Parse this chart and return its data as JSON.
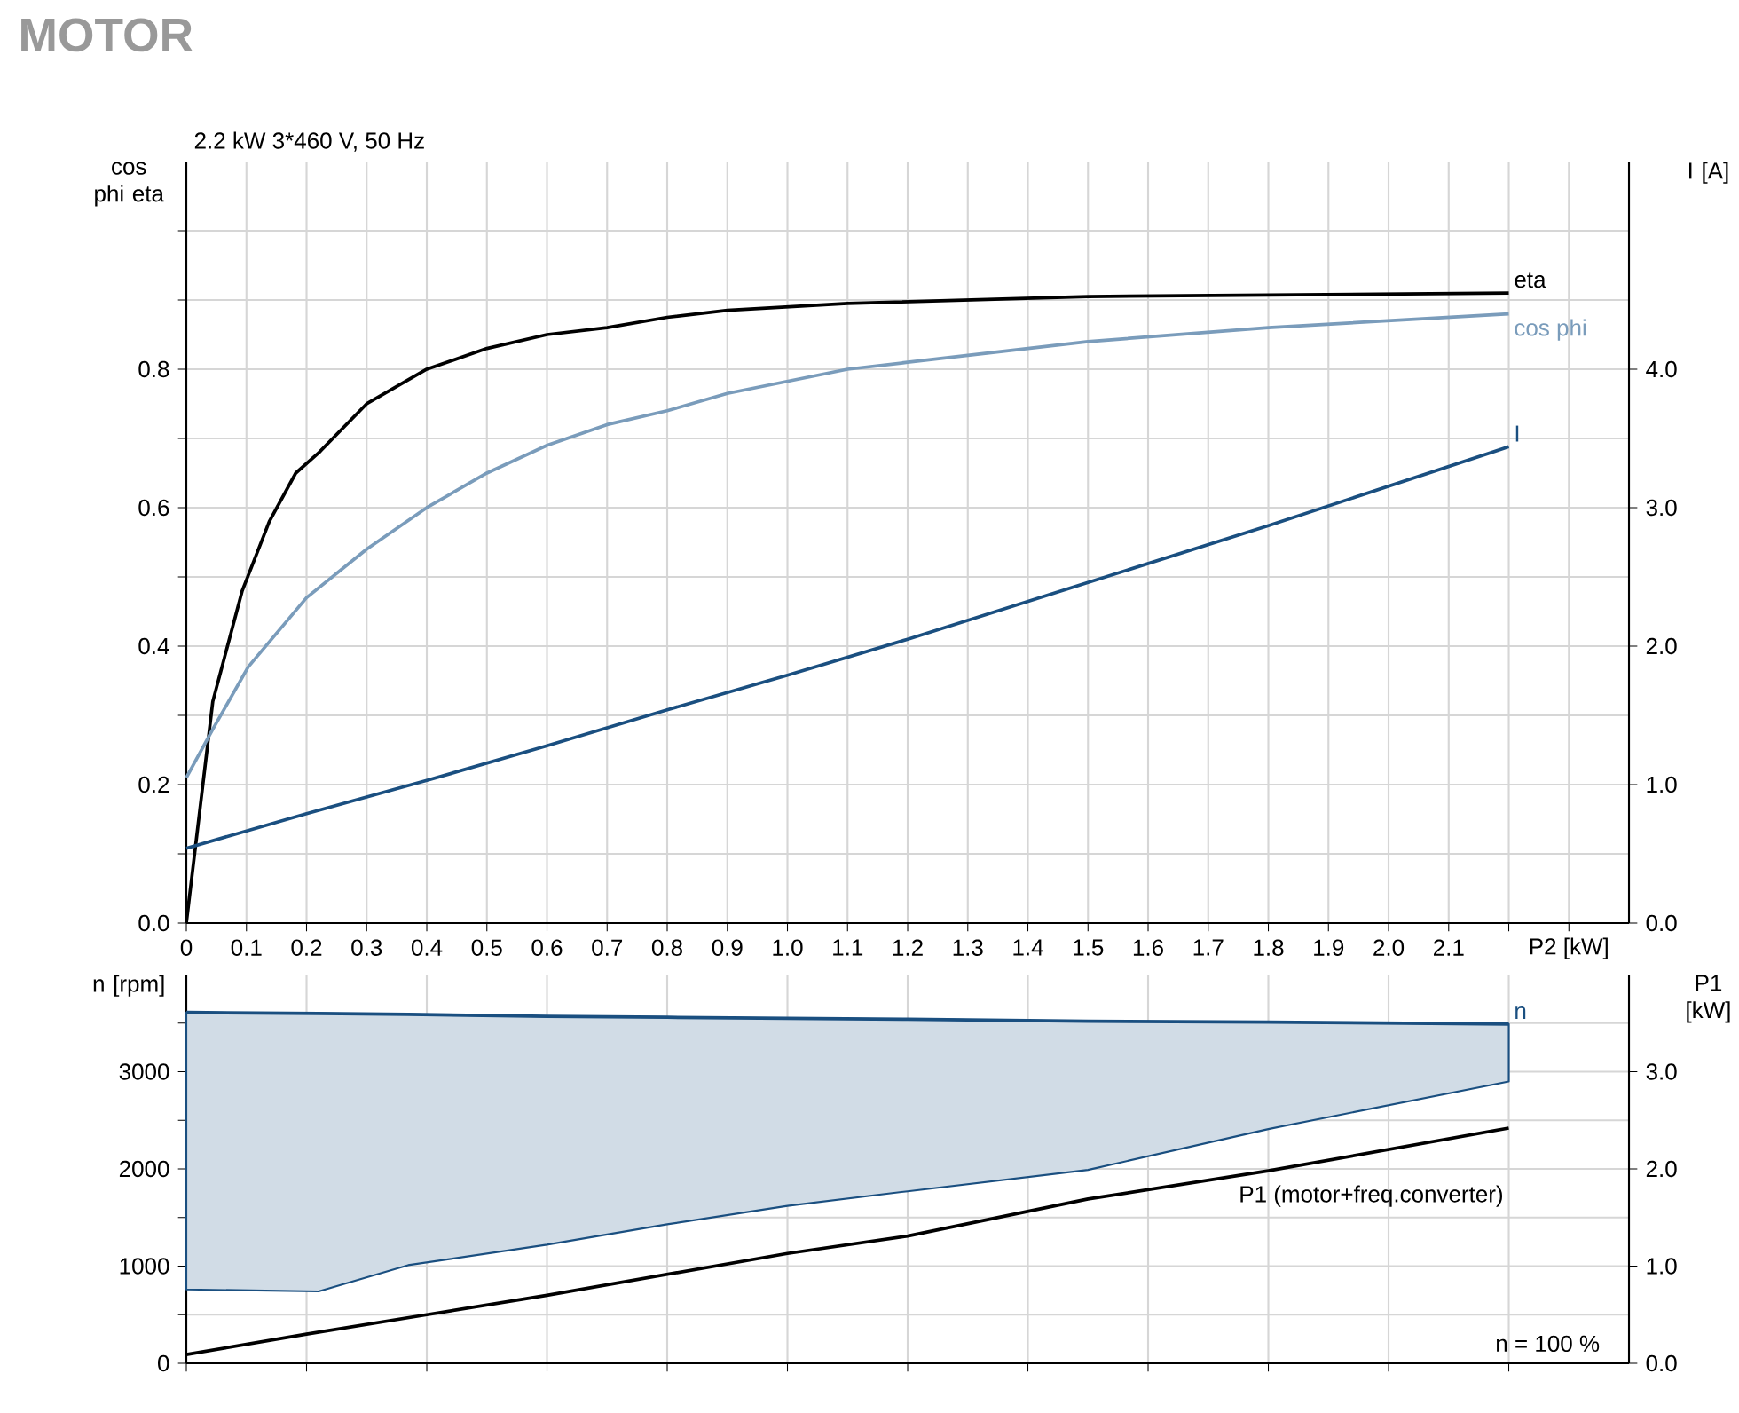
{
  "chart_data": [
    {
      "type": "line",
      "title": "MOTOR",
      "subtitle": "2.2 kW   3*460 V, 50 Hz",
      "xlabel": "P2 [kW]",
      "ylabel": "cos phi eta",
      "y2label": "I [A]",
      "xlim": [
        0,
        2.4
      ],
      "xticks": [
        0,
        0.1,
        0.2,
        0.3,
        0.4,
        0.5,
        0.6,
        0.7,
        0.8,
        0.9,
        {
          "value": 1,
          "label": "1.0"
        },
        1.1,
        1.2,
        1.3,
        1.4,
        1.5,
        1.6,
        1.7,
        1.8,
        1.9,
        {
          "value": 2,
          "label": "2.0"
        },
        2.1,
        {
          "value": 2.2,
          "label": null
        },
        {
          "value": 2.3,
          "label": null
        }
      ],
      "ylim": [
        0,
        1.1
      ],
      "yticks": [
        {
          "value": 0,
          "label": "0.0"
        },
        {
          "value": 0.1,
          "label": null
        },
        0.2,
        {
          "value": 0.3,
          "label": null
        },
        0.4,
        {
          "value": 0.5,
          "label": null
        },
        0.6,
        {
          "value": 0.7,
          "label": null
        },
        0.8,
        {
          "value": 0.9,
          "label": null
        },
        {
          "value": 1,
          "label": null
        }
      ],
      "y2lim": [
        0,
        5.5
      ],
      "y2ticks": [
        {
          "value": 0,
          "label": "0.0"
        },
        {
          "value": 1,
          "label": "1.0"
        },
        {
          "value": 2,
          "label": "2.0"
        },
        {
          "value": 3,
          "label": "3.0"
        },
        {
          "value": 4,
          "label": "4.0"
        }
      ],
      "grid": true,
      "series": [
        {
          "name": "eta",
          "color": "#000000",
          "x": [
            0,
            0.044,
            0.093,
            0.138,
            0.182,
            0.221,
            0.3,
            0.4,
            0.5,
            0.6,
            0.7,
            0.8,
            0.9,
            1.1,
            1.5,
            2.2
          ],
          "values": [
            0,
            0.32,
            0.48,
            0.58,
            0.65,
            0.68,
            0.75,
            0.8,
            0.83,
            0.85,
            0.86,
            0.875,
            0.885,
            0.895,
            0.905,
            0.91
          ]
        },
        {
          "name": "cos phi",
          "color": "#7a9cbb",
          "x": [
            0,
            0.044,
            0.103,
            0.2,
            0.3,
            0.4,
            0.5,
            0.6,
            0.7,
            0.8,
            0.9,
            1.1,
            1.2,
            1.5,
            1.8,
            2.2
          ],
          "values": [
            0.21,
            0.28,
            0.37,
            0.47,
            0.54,
            0.6,
            0.65,
            0.69,
            0.72,
            0.74,
            0.765,
            0.8,
            0.81,
            0.84,
            0.86,
            0.88
          ]
        },
        {
          "name": "I",
          "color": "#1a4f80",
          "axis": "y2",
          "x": [
            0,
            0.2,
            0.4,
            0.6,
            0.8,
            1.0,
            1.2,
            1.5,
            1.8,
            2.2
          ],
          "values": [
            0.54,
            0.79,
            1.03,
            1.28,
            1.54,
            1.79,
            2.05,
            2.46,
            2.87,
            3.44
          ]
        }
      ]
    },
    {
      "type": "line",
      "ylabel": "n [rpm]",
      "y2label": "P1 [kW]",
      "annotations": [
        "n = 100 %"
      ],
      "xlim": [
        0,
        2.4
      ],
      "xticks": [
        0,
        0.2,
        0.4,
        0.6,
        0.8,
        1.0,
        1.2,
        1.4,
        1.6,
        1.8,
        2.0,
        2.2
      ],
      "tick_labels": "y",
      "ylim": [
        0,
        4000
      ],
      "yticks": [
        0,
        {
          "value": 500,
          "label": null
        },
        1000,
        {
          "value": 1500,
          "label": null
        },
        2000,
        {
          "value": 2500,
          "label": null
        },
        3000,
        {
          "value": 3500,
          "label": null
        }
      ],
      "y2lim": [
        0,
        4
      ],
      "y2ticks": [
        {
          "value": 0,
          "label": "0.0"
        },
        {
          "value": 1,
          "label": "1.0"
        },
        {
          "value": 2,
          "label": "2.0"
        },
        {
          "value": 3,
          "label": "3.0"
        }
      ],
      "grid": true,
      "series": [
        {
          "name": "n",
          "color": "#1a4f80",
          "x": [
            0,
            0.22,
            0.369,
            0.6,
            0.8,
            1.0,
            1.2,
            1.5,
            1.8,
            2.2
          ],
          "values": [
            3610,
            3600,
            3590,
            3570,
            3560,
            3550,
            3540,
            3520,
            3510,
            3490
          ],
          "lower": [
            760,
            740,
            1010,
            1220,
            1430,
            1620,
            1770,
            1990,
            2410,
            2900
          ],
          "upper": [
            3610,
            3600,
            3590,
            3570,
            3560,
            3550,
            3540,
            3520,
            3510,
            3490
          ]
        },
        {
          "name": "P1 (motor+freq.converter)",
          "color": "#000000",
          "axis": "y2",
          "x": [
            0,
            0.2,
            0.4,
            0.6,
            1.0,
            1.2,
            1.5,
            1.8,
            2.2
          ],
          "values": [
            0.09,
            0.3,
            0.5,
            0.7,
            1.13,
            1.31,
            1.69,
            1.98,
            2.42
          ]
        }
      ]
    }
  ]
}
